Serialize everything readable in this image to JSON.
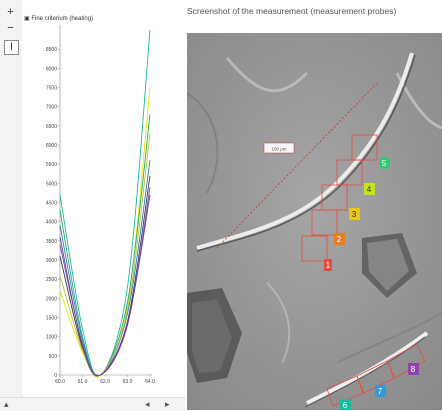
{
  "toolbar": {
    "tools": [
      {
        "icon": "zoom-in-icon",
        "glyph": "+"
      },
      {
        "icon": "zoom-out-icon",
        "glyph": "−"
      },
      {
        "icon": "cursor-icon",
        "glyph": "I"
      }
    ]
  },
  "chart_data": {
    "type": "line",
    "title": "Fine criterium (heating)",
    "xlim": [
      60.0,
      64.0
    ],
    "ylim": [
      0,
      9000
    ],
    "x_ticks": [
      "60.0",
      "61.0",
      "62.0",
      "63.0",
      "64.0"
    ],
    "y_ticks": [
      "0",
      "500",
      "1000",
      "1500",
      "2000",
      "2500",
      "3000",
      "3500",
      "4000",
      "4500",
      "5000",
      "5500",
      "6000",
      "6500",
      "7000",
      "7500",
      "8000",
      "8500"
    ],
    "series": [
      {
        "color": "#1abc9c",
        "x": [
          60.0,
          61.0,
          61.8,
          63.0,
          64.0
        ],
        "y": [
          4700,
          1200,
          0,
          2300,
          9000
        ]
      },
      {
        "color": "#8e44ad",
        "x": [
          60.0,
          61.0,
          61.8,
          63.0,
          64.0
        ],
        "y": [
          3400,
          800,
          0,
          1300,
          4900
        ]
      },
      {
        "color": "#e5e500",
        "x": [
          60.0,
          61.0,
          61.8,
          63.0,
          64.0
        ],
        "y": [
          2200,
          600,
          0,
          1800,
          7500
        ]
      },
      {
        "color": "#27ae60",
        "x": [
          60.0,
          61.0,
          61.8,
          63.0,
          64.0
        ],
        "y": [
          4300,
          1000,
          0,
          1900,
          6800
        ]
      },
      {
        "color": "#2c3e50",
        "x": [
          60.0,
          61.0,
          61.8,
          63.0,
          64.0
        ],
        "y": [
          3100,
          700,
          0,
          1400,
          5200
        ]
      },
      {
        "color": "#2980b9",
        "x": [
          60.0,
          61.0,
          61.8,
          63.0,
          64.0
        ],
        "y": [
          3900,
          900,
          0,
          1600,
          5600
        ]
      },
      {
        "color": "#c0c040",
        "x": [
          60.0,
          61.0,
          61.8,
          63.0,
          64.0
        ],
        "y": [
          2600,
          650,
          0,
          1700,
          6300
        ]
      },
      {
        "color": "#6a3d9a",
        "x": [
          60.0,
          61.0,
          61.8,
          63.0,
          64.0
        ],
        "y": [
          3600,
          750,
          0,
          1350,
          4700
        ]
      }
    ]
  },
  "bottom": {
    "left_icon": "resize-handle-icon",
    "right_icons": [
      "scroll-left-icon",
      "scroll-right-icon"
    ]
  },
  "photo": {
    "caption": "Screenshot of the measurement (measurement probes)",
    "scale_label": "100 μm",
    "probes": [
      {
        "label": "1",
        "color": "#e74c3c"
      },
      {
        "label": "2",
        "color": "#e67e22"
      },
      {
        "label": "3",
        "color": "#f1c40f"
      },
      {
        "label": "4",
        "color": "#c5e31a"
      },
      {
        "label": "5",
        "color": "#2ecc71"
      },
      {
        "label": "6",
        "color": "#1abc9c"
      },
      {
        "label": "7",
        "color": "#3498db"
      },
      {
        "label": "8",
        "color": "#8e44ad"
      }
    ]
  }
}
